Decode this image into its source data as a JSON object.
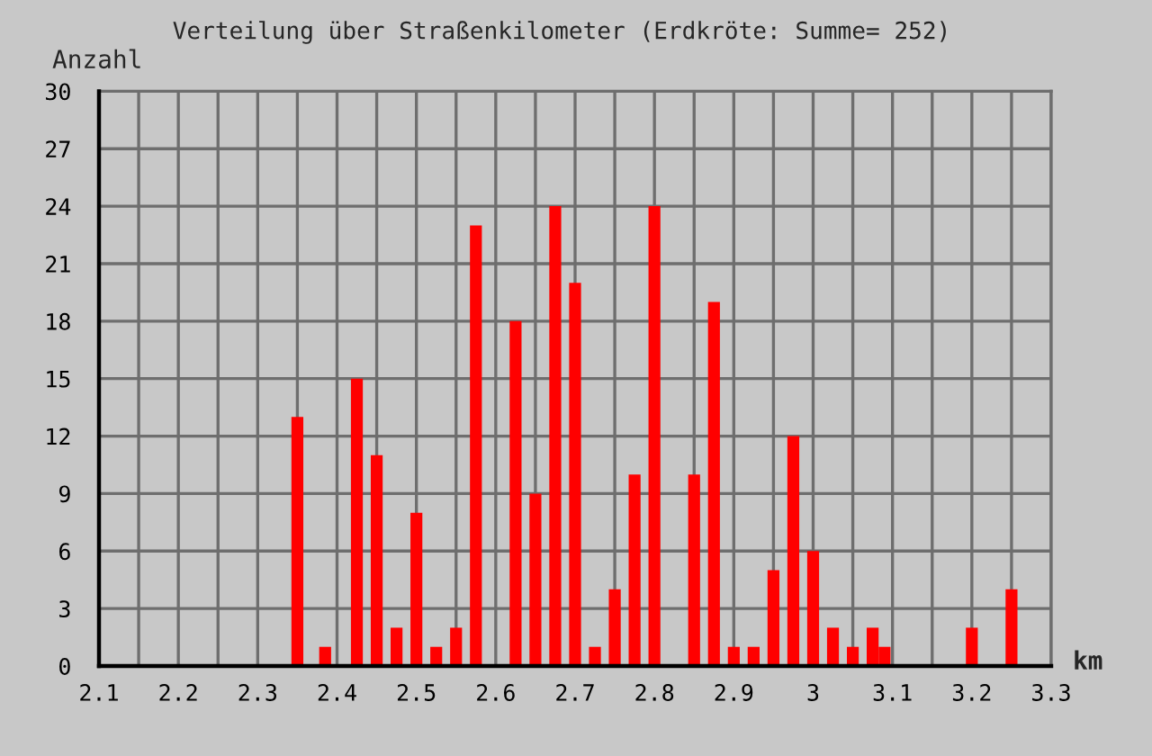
{
  "chart_data": {
    "type": "bar",
    "title": "Verteilung über Straßenkilometer (Erdkröte: Summe= 252)",
    "ylabel": "Anzahl",
    "xlabel": "km",
    "x": [
      2.35,
      2.385,
      2.425,
      2.45,
      2.475,
      2.5,
      2.525,
      2.55,
      2.575,
      2.625,
      2.65,
      2.675,
      2.7,
      2.725,
      2.75,
      2.775,
      2.8,
      2.85,
      2.875,
      2.9,
      2.925,
      2.95,
      2.975,
      3.0,
      3.025,
      3.05,
      3.075,
      3.09,
      3.2,
      3.25
    ],
    "values": [
      13,
      1,
      15,
      11,
      2,
      8,
      1,
      2,
      23,
      18,
      9,
      24,
      20,
      1,
      4,
      10,
      24,
      10,
      19,
      1,
      1,
      5,
      12,
      6,
      2,
      1,
      2,
      1,
      2,
      4
    ],
    "color": "#ff0000",
    "xlim": [
      2.1,
      3.3
    ],
    "xticks": [
      2.1,
      {
        "value": 2.15,
        "label": null
      },
      2.2,
      {
        "value": 2.25,
        "label": null
      },
      2.3,
      {
        "value": 2.35,
        "label": null
      },
      2.4,
      {
        "value": 2.45,
        "label": null
      },
      2.5,
      {
        "value": 2.55,
        "label": null
      },
      2.6,
      {
        "value": 2.65,
        "label": null
      },
      2.7,
      {
        "value": 2.75,
        "label": null
      },
      2.8,
      {
        "value": 2.85,
        "label": null
      },
      2.9,
      {
        "value": 2.95,
        "label": null
      },
      3,
      {
        "value": 3.05,
        "label": null
      },
      3.1,
      {
        "value": 3.15,
        "label": null
      },
      3.2,
      {
        "value": 3.25,
        "label": null
      },
      3.3
    ],
    "ylim": [
      0,
      30
    ],
    "yticks": [
      0,
      3,
      6,
      9,
      12,
      15,
      18,
      21,
      24,
      27,
      30
    ],
    "grid": true
  }
}
